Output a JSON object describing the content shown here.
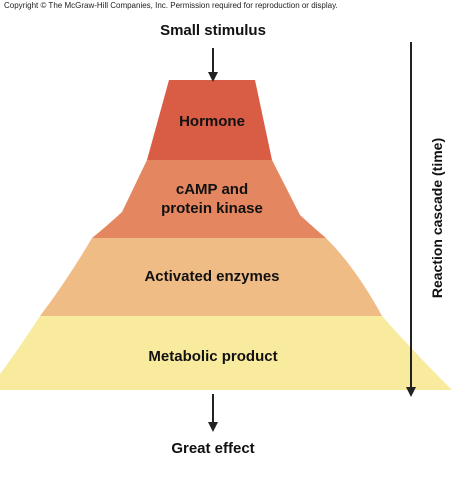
{
  "copyright": "Copyright © The McGraw-Hill Companies, Inc. Permission required for reproduction or display.",
  "top_label": "Small stimulus",
  "bottom_label": "Great effect",
  "side_label": "Reaction cascade (time)",
  "tiers": [
    {
      "label": "Hormone",
      "color": "#d95c45"
    },
    {
      "label": "cAMP and\nprotein kinase",
      "color": "#e4865f"
    },
    {
      "label": "Activated enzymes",
      "color": "#f0bc86"
    },
    {
      "label": "Metabolic product",
      "color": "#f9eb9e"
    }
  ],
  "colors": {
    "arrow": "#222222"
  }
}
